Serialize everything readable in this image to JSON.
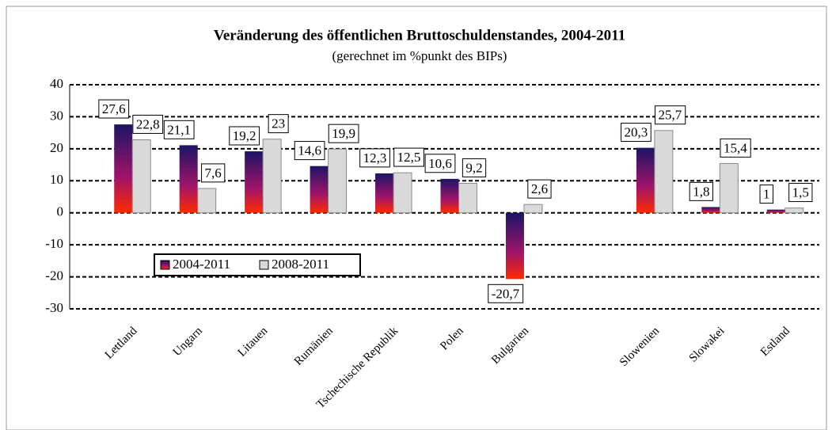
{
  "chart_data": {
    "type": "bar",
    "title": "Veränderung des öffentlichen Bruttoschuldenstandes, 2004-2011",
    "subtitle": "(gerechnet im %punkt des BIPs)",
    "categories": [
      "Lettland",
      "Ungarn",
      "Litauen",
      "Rumänien",
      "Tschechische Republik",
      "Polen",
      "Bulgarien",
      null,
      "Slowenien",
      "Slowakei",
      "Estland"
    ],
    "series": [
      {
        "name": "2004-2011",
        "color": "#1c1466",
        "values": [
          27.6,
          21.1,
          19.2,
          14.6,
          12.3,
          10.6,
          -20.7,
          null,
          20.3,
          1.8,
          1
        ],
        "value_labels": [
          "27,6",
          "21,1",
          "19,2",
          "14,6",
          "12,3",
          "10,6",
          "-20,7",
          null,
          "20,3",
          "1,8",
          "1"
        ]
      },
      {
        "name": "2008-2011",
        "color": "#d9d9d9",
        "values": [
          22.8,
          7.6,
          23,
          19.9,
          12.5,
          9.2,
          2.6,
          null,
          25.7,
          15.4,
          1.5
        ],
        "value_labels": [
          "22,8",
          "7,6",
          "23",
          "19,9",
          "12,5",
          "9,2",
          "2,6",
          null,
          "25,7",
          "15,4",
          "1,5"
        ]
      }
    ],
    "ylim": [
      -30,
      40
    ],
    "yticks": [
      -30,
      -20,
      -10,
      0,
      10,
      20,
      30,
      40
    ],
    "grid": true
  }
}
